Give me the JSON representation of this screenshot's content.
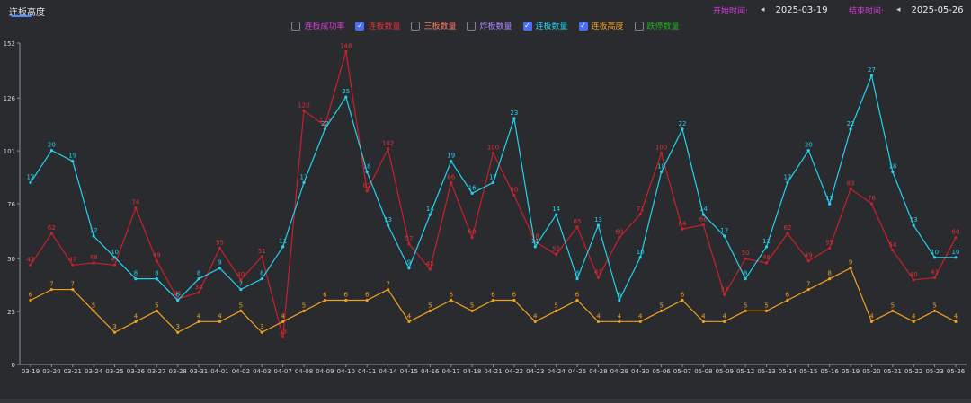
{
  "tab": {
    "label": "连板高度"
  },
  "date_range": {
    "start_label": "开始时间:",
    "start_value": "2025-03-19",
    "end_label": "结束时间:",
    "end_value": "2025-05-26"
  },
  "legend": [
    {
      "label": "连板成功率",
      "checked": false,
      "color": "#d63cd6"
    },
    {
      "label": "连板数量",
      "checked": true,
      "color": "#e0303a"
    },
    {
      "label": "三板数量",
      "checked": false,
      "color": "#ff7a66"
    },
    {
      "label": "炸板数量",
      "checked": false,
      "color": "#b086ff"
    },
    {
      "label": "连板数量",
      "checked": true,
      "color": "#22d3ee"
    },
    {
      "label": "连板高度",
      "checked": true,
      "color": "#f0a020"
    },
    {
      "label": "跌停数量",
      "checked": false,
      "color": "#22b022"
    }
  ],
  "chart_data": {
    "type": "line",
    "ylim": [
      0,
      152
    ],
    "yticks": [
      0,
      25,
      50,
      76,
      101,
      126,
      152
    ],
    "categories": [
      "03-19",
      "03-20",
      "03-21",
      "03-24",
      "03-25",
      "03-26",
      "03-27",
      "03-28",
      "03-31",
      "04-01",
      "04-02",
      "04-03",
      "04-07",
      "04-08",
      "04-09",
      "04-10",
      "04-11",
      "04-14",
      "04-15",
      "04-16",
      "04-17",
      "04-18",
      "04-21",
      "04-22",
      "04-23",
      "04-24",
      "04-25",
      "04-28",
      "04-29",
      "04-30",
      "05-06",
      "05-07",
      "05-08",
      "05-09",
      "05-12",
      "05-13",
      "05-14",
      "05-15",
      "05-16",
      "05-19",
      "05-20",
      "05-21",
      "05-22",
      "05-23",
      "05-26"
    ],
    "series": [
      {
        "name": "连板数量",
        "color": "#c8202c",
        "label_color": "#e0303a",
        "values": [
          47,
          62,
          47,
          48,
          47,
          74,
          49,
          31,
          34,
          55,
          40,
          51,
          13,
          120,
          113,
          148,
          82,
          102,
          57,
          45,
          86,
          60,
          100,
          80,
          58,
          52,
          65,
          41,
          60,
          71,
          100,
          64,
          66,
          33,
          50,
          48,
          62,
          49,
          55,
          83,
          76,
          54,
          40,
          41,
          60
        ]
      },
      {
        "name": "连板数量",
        "color": "#22d3ee",
        "label_color": "#22d3ee",
        "values": [
          17,
          20,
          19,
          12,
          10,
          8,
          8,
          6,
          8,
          9,
          7,
          8,
          11,
          17,
          22,
          25,
          18,
          13,
          9,
          14,
          19,
          16,
          17,
          23,
          11,
          14,
          8,
          13,
          6,
          10,
          18,
          22,
          14,
          12,
          8,
          11,
          17,
          20,
          15,
          22,
          27,
          18,
          13,
          10,
          10
        ]
      },
      {
        "name": "连板高度",
        "color": "#f0a020",
        "label_color": "#f0a020",
        "values": [
          6,
          7,
          7,
          5,
          3,
          4,
          5,
          3,
          4,
          4,
          5,
          3,
          4,
          5,
          6,
          6,
          6,
          7,
          4,
          5,
          6,
          5,
          6,
          6,
          4,
          5,
          6,
          4,
          4,
          4,
          5,
          6,
          4,
          4,
          5,
          5,
          6,
          7,
          8,
          9,
          4,
          5,
          4,
          5,
          4
        ]
      }
    ],
    "cyan_scale": 5.06,
    "orange_scale": 5.06
  }
}
